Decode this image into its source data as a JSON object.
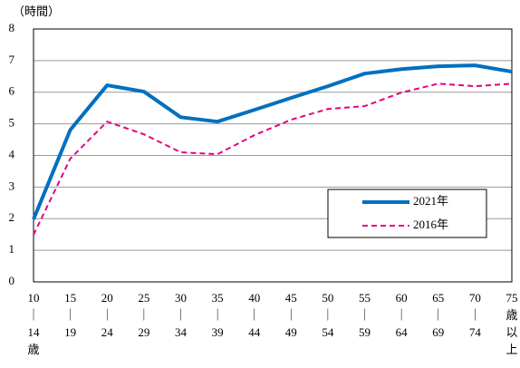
{
  "chart_data": {
    "type": "line",
    "y_label": "（時間）",
    "categories": [
      [
        "10",
        "｜",
        "14",
        "歳"
      ],
      [
        "15",
        "｜",
        "19"
      ],
      [
        "20",
        "｜",
        "24"
      ],
      [
        "25",
        "｜",
        "29"
      ],
      [
        "30",
        "｜",
        "34"
      ],
      [
        "35",
        "｜",
        "39"
      ],
      [
        "40",
        "｜",
        "44"
      ],
      [
        "45",
        "｜",
        "49"
      ],
      [
        "50",
        "｜",
        "54"
      ],
      [
        "55",
        "｜",
        "59"
      ],
      [
        "60",
        "｜",
        "64"
      ],
      [
        "65",
        "｜",
        "69"
      ],
      [
        "70",
        "｜",
        "74"
      ],
      [
        "75",
        "歳",
        "以",
        "上"
      ]
    ],
    "series": [
      {
        "name": "2021年",
        "color": "#0070c0",
        "dashed": false,
        "values": [
          1.98,
          4.81,
          6.22,
          6.02,
          5.21,
          5.07,
          5.44,
          5.82,
          6.19,
          6.59,
          6.73,
          6.82,
          6.85,
          6.65
        ]
      },
      {
        "name": "2016年",
        "color": "#e6007e",
        "dashed": true,
        "values": [
          1.49,
          3.9,
          5.07,
          4.67,
          4.1,
          4.04,
          4.64,
          5.13,
          5.47,
          5.56,
          5.99,
          6.27,
          6.19,
          6.27
        ]
      }
    ],
    "ylim": [
      0,
      8
    ],
    "yticks": [
      0,
      1,
      2,
      3,
      4,
      5,
      6,
      7,
      8
    ],
    "grid": true
  }
}
